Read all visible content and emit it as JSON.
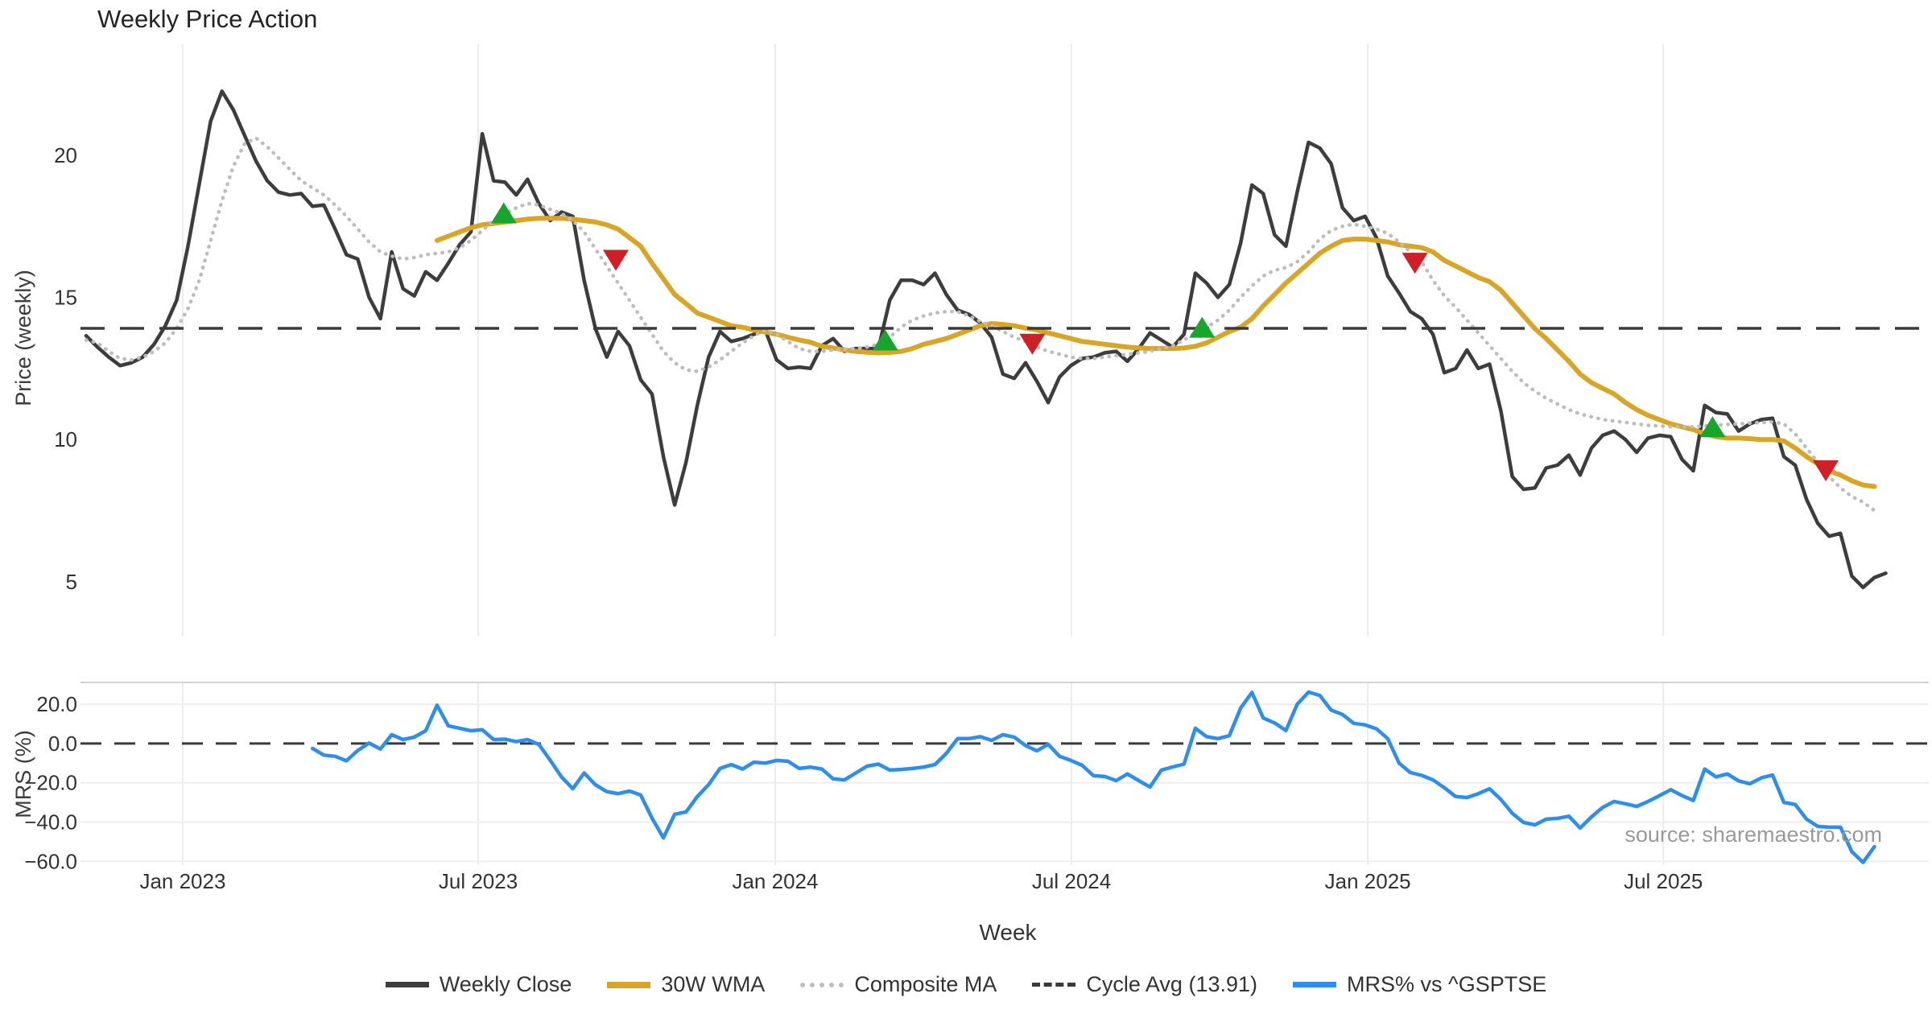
{
  "title": "Weekly Price Action",
  "source": "source: sharemaestro.com",
  "top_panel": {
    "ylabel": "Price (weekly)"
  },
  "bottom_panel": {
    "ylabel": "MRS (%)"
  },
  "x_axis": {
    "label": "Week"
  },
  "legend": [
    {
      "label": "Weekly Close"
    },
    {
      "label": "30W WMA"
    },
    {
      "label": "Composite MA"
    },
    {
      "label": "Cycle Avg (13.91)"
    },
    {
      "label": "MRS% vs ^GSPTSE"
    }
  ],
  "colors": {
    "close": "#3d3d3d",
    "wma": "#d8a524",
    "composite": "#bdbdbd",
    "cycle_avg": "#3a3a3a",
    "mrs": "#2d8fed",
    "buy": "#17a52b",
    "sell": "#d01f26",
    "grid": "#ececec",
    "divider": "#d3d3d3",
    "source_text": "#9a9a9a"
  },
  "chart_data": {
    "type": "line",
    "title": "Weekly Price Action",
    "x_unit": "weeks",
    "start_date": "2022-11-07",
    "xlabel": "Week",
    "xticks": [
      {
        "label": "Jan 2023",
        "week": 8.53
      },
      {
        "label": "Jul 2023",
        "week": 34.64
      },
      {
        "label": "Jan 2024",
        "week": 60.88
      },
      {
        "label": "Jul 2024",
        "week": 87.06
      },
      {
        "label": "Jan 2025",
        "week": 113.24
      },
      {
        "label": "Jul 2025",
        "week": 139.35
      }
    ],
    "panels": [
      {
        "name": "price",
        "ylabel": "Price (weekly)",
        "yticks": [
          5,
          10,
          15,
          20
        ],
        "ylim": [
          3.1,
          23.9
        ],
        "grid": "vertical-only",
        "cycle_avg": 13.91,
        "series": [
          {
            "name": "Weekly Close",
            "style": "solid",
            "start_week": 0,
            "values": [
              13.65,
              13.25,
              12.9,
              12.6,
              12.7,
              12.9,
              13.35,
              14.0,
              14.9,
              16.8,
              19.0,
              21.2,
              22.25,
              21.6,
              20.7,
              19.8,
              19.1,
              18.7,
              18.6,
              18.65,
              18.2,
              18.25,
              17.4,
              16.5,
              16.35,
              15.0,
              14.25,
              16.6,
              15.3,
              15.05,
              15.9,
              15.6,
              16.2,
              16.85,
              17.3,
              20.75,
              19.1,
              19.05,
              18.6,
              19.15,
              18.3,
              17.7,
              18.0,
              17.85,
              15.6,
              13.9,
              12.9,
              13.8,
              13.3,
              12.1,
              11.6,
              9.4,
              7.7,
              9.2,
              11.2,
              12.9,
              13.8,
              13.45,
              13.55,
              13.7,
              13.85,
              12.8,
              12.5,
              12.55,
              12.5,
              13.3,
              13.55,
              13.1,
              13.2,
              13.2,
              13.2,
              14.9,
              15.6,
              15.6,
              15.45,
              15.85,
              15.1,
              14.55,
              14.4,
              14.1,
              13.6,
              12.3,
              12.15,
              12.7,
              12.05,
              11.3,
              12.2,
              12.6,
              12.85,
              12.9,
              13.05,
              13.1,
              12.75,
              13.2,
              13.75,
              13.5,
              13.25,
              13.7,
              15.85,
              15.5,
              15.0,
              15.45,
              16.9,
              18.95,
              18.65,
              17.2,
              16.8,
              18.7,
              20.45,
              20.25,
              19.7,
              18.15,
              17.7,
              17.85,
              17.1,
              15.75,
              15.15,
              14.5,
              14.25,
              13.7,
              12.35,
              12.5,
              13.15,
              12.5,
              12.65,
              11.0,
              8.7,
              8.25,
              8.3,
              9.0,
              9.1,
              9.45,
              8.75,
              9.7,
              10.15,
              10.3,
              10.0,
              9.55,
              10.05,
              10.15,
              10.1,
              9.3,
              8.9,
              11.2,
              10.95,
              10.9,
              10.3,
              10.55,
              10.7,
              10.75,
              9.4,
              9.1,
              7.9,
              7.05,
              6.6,
              6.7,
              5.2,
              4.8,
              5.15,
              5.3
            ]
          },
          {
            "name": "30W WMA",
            "style": "solid",
            "start_week": 31,
            "values": [
              17.0,
              17.15,
              17.3,
              17.45,
              17.55,
              17.6,
              17.65,
              17.7,
              17.75,
              17.78,
              17.78,
              17.78,
              17.75,
              17.7,
              17.65,
              17.55,
              17.4,
              17.1,
              16.8,
              16.2,
              15.65,
              15.1,
              14.78,
              14.45,
              14.3,
              14.15,
              14.0,
              13.95,
              13.85,
              13.78,
              13.7,
              13.6,
              13.5,
              13.42,
              13.28,
              13.22,
              13.15,
              13.1,
              13.07,
              13.05,
              13.06,
              13.1,
              13.2,
              13.35,
              13.45,
              13.55,
              13.7,
              13.85,
              14.0,
              14.08,
              14.05,
              14.0,
              13.92,
              13.85,
              13.75,
              13.65,
              13.55,
              13.45,
              13.4,
              13.35,
              13.3,
              13.25,
              13.22,
              13.2,
              13.2,
              13.2,
              13.22,
              13.28,
              13.4,
              13.6,
              13.8,
              13.95,
              14.25,
              14.7,
              15.1,
              15.5,
              15.85,
              16.2,
              16.55,
              16.8,
              17.0,
              17.05,
              17.05,
              17.0,
              16.95,
              16.85,
              16.8,
              16.75,
              16.6,
              16.3,
              16.1,
              15.9,
              15.7,
              15.55,
              15.25,
              14.8,
              14.35,
              13.9,
              13.55,
              13.15,
              12.75,
              12.3,
              12.0,
              11.8,
              11.6,
              11.3,
              11.05,
              10.85,
              10.7,
              10.55,
              10.45,
              10.35,
              10.2,
              10.1,
              10.05,
              10.05,
              10.03,
              10.0,
              10.0,
              9.95,
              9.7,
              9.4,
              9.15,
              8.9,
              8.75,
              8.55,
              8.4,
              8.35
            ]
          },
          {
            "name": "Composite MA",
            "style": "dotted",
            "start_week": 0,
            "values": [
              13.5,
              13.4,
              13.1,
              12.85,
              12.8,
              12.9,
              13.1,
              13.4,
              13.9,
              14.6,
              15.6,
              17.0,
              18.4,
              19.6,
              20.4,
              20.6,
              20.3,
              19.9,
              19.5,
              19.1,
              18.85,
              18.6,
              18.25,
              17.85,
              17.4,
              16.95,
              16.6,
              16.45,
              16.35,
              16.4,
              16.5,
              16.55,
              16.6,
              16.75,
              17.0,
              17.35,
              17.7,
              17.95,
              18.15,
              18.3,
              18.25,
              18.1,
              17.95,
              17.7,
              17.3,
              16.7,
              16.1,
              15.5,
              14.9,
              14.3,
              13.7,
              13.1,
              12.7,
              12.45,
              12.4,
              12.55,
              12.8,
              13.1,
              13.4,
              13.65,
              13.85,
              13.7,
              13.45,
              13.2,
              13.1,
              13.1,
              13.15,
              13.18,
              13.2,
              13.25,
              13.35,
              13.6,
              13.95,
              14.2,
              14.35,
              14.45,
              14.5,
              14.5,
              14.35,
              14.15,
              14.0,
              13.8,
              13.6,
              13.45,
              13.25,
              13.1,
              13.0,
              12.9,
              12.85,
              12.85,
              12.9,
              12.95,
              13.0,
              13.05,
              13.1,
              13.2,
              13.3,
              13.5,
              13.75,
              13.95,
              14.2,
              14.55,
              15.0,
              15.4,
              15.75,
              15.95,
              16.05,
              16.25,
              16.6,
              17.05,
              17.35,
              17.5,
              17.57,
              17.5,
              17.4,
              17.25,
              16.95,
              16.6,
              16.25,
              15.6,
              15.05,
              14.65,
              14.2,
              13.75,
              13.3,
              12.85,
              12.4,
              12.0,
              11.7,
              11.45,
              11.25,
              11.05,
              10.9,
              10.8,
              10.7,
              10.65,
              10.6,
              10.55,
              10.5,
              10.48,
              10.45,
              10.45,
              10.45,
              10.48,
              10.5,
              10.53,
              10.55,
              10.58,
              10.6,
              10.62,
              10.55,
              10.2,
              9.7,
              9.2,
              8.7,
              8.3,
              8.0,
              7.8,
              7.5
            ]
          },
          {
            "name": "Cycle Avg (13.91)",
            "style": "dashed",
            "const_value": 13.91
          }
        ],
        "markers": {
          "buy": [
            {
              "week": 36.9,
              "price": 17.97
            },
            {
              "week": 70.6,
              "price": 13.5
            },
            {
              "week": 98.6,
              "price": 13.95
            },
            {
              "week": 143.7,
              "price": 10.45
            }
          ],
          "sell": [
            {
              "week": 46.8,
              "price": 16.3
            },
            {
              "week": 83.6,
              "price": 13.35
            },
            {
              "week": 117.4,
              "price": 16.2
            },
            {
              "week": 153.7,
              "price": 8.9
            }
          ]
        }
      },
      {
        "name": "mrs",
        "ylabel": "MRS (%)",
        "yticks": [
          20,
          0,
          -20,
          -40,
          -60
        ],
        "ylim": [
          -61.9,
          31.1
        ],
        "grid": "horizontal",
        "zero_line": 0,
        "series": [
          {
            "name": "MRS% vs ^GSPTSE",
            "style": "solid",
            "start_week": 20,
            "values": [
              -2.5,
              -5.9,
              -6.5,
              -8.8,
              -3.5,
              0.2,
              -2.8,
              4.5,
              2.0,
              3.3,
              6.5,
              19.5,
              9.0,
              7.8,
              6.5,
              7.0,
              2.0,
              2.2,
              1.0,
              2.0,
              -0.5,
              -8.5,
              -17.0,
              -23.0,
              -15.0,
              -21.0,
              -24.5,
              -25.5,
              -24.2,
              -26.2,
              -38.0,
              -48.0,
              -36.0,
              -34.8,
              -27.0,
              -20.9,
              -12.7,
              -10.7,
              -13.0,
              -9.5,
              -10.0,
              -8.6,
              -9.0,
              -12.7,
              -12.0,
              -13.0,
              -18.0,
              -18.5,
              -15.0,
              -11.5,
              -10.5,
              -13.5,
              -13.2,
              -12.7,
              -12.0,
              -10.7,
              -5.0,
              2.5,
              2.5,
              3.5,
              1.6,
              4.5,
              3.3,
              -1.0,
              -3.7,
              -0.4,
              -6.5,
              -8.6,
              -11.1,
              -16.4,
              -16.8,
              -18.9,
              -15.5,
              -18.9,
              -22.1,
              -13.5,
              -11.9,
              -10.5,
              7.8,
              3.5,
              2.5,
              4.0,
              18.0,
              26.0,
              13.0,
              10.5,
              6.6,
              20.0,
              26.2,
              24.5,
              17.0,
              14.8,
              10.3,
              9.5,
              7.5,
              2.5,
              -10.0,
              -14.8,
              -16.2,
              -18.5,
              -22.5,
              -27.0,
              -27.5,
              -25.5,
              -23.0,
              -28.5,
              -35.5,
              -40.2,
              -41.4,
              -38.5,
              -38.1,
              -37.0,
              -43.0,
              -37.3,
              -32.5,
              -29.5,
              -30.7,
              -32.0,
              -29.5,
              -26.6,
              -23.5,
              -26.5,
              -29.0,
              -13.0,
              -17.0,
              -15.5,
              -19.0,
              -20.5,
              -17.5,
              -16.0,
              -30.0,
              -31.0,
              -38.5,
              -42.2,
              -42.6,
              -42.6,
              -55.0,
              -60.5,
              -52.5
            ]
          }
        ]
      }
    ]
  }
}
